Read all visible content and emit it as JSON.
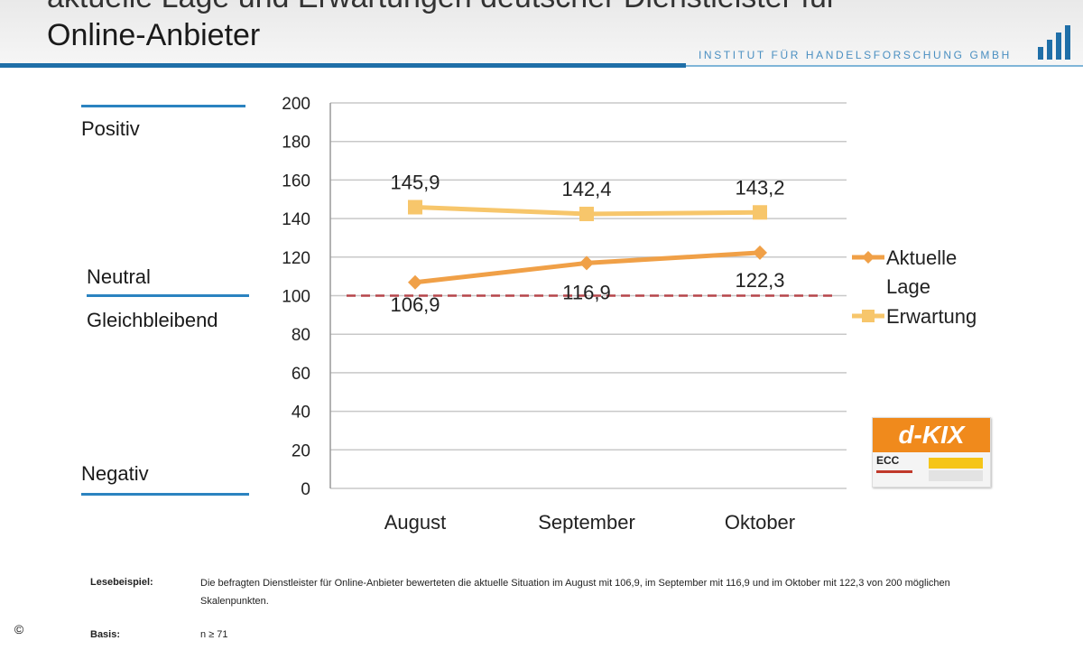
{
  "header": {
    "title_line1": "aktuelle Lage und Erwartungen deutscher Dienstleister für",
    "title_line2": "Online-Anbieter",
    "institute": "INSTITUT FÜR HANDELSFORSCHUNG GMBH"
  },
  "side_labels": {
    "positive": "Positiv",
    "neutral": "Neutral",
    "same": "Gleichbleibend",
    "negative": "Negativ"
  },
  "chart_data": {
    "type": "line",
    "categories": [
      "August",
      "September",
      "Oktober"
    ],
    "series": [
      {
        "name": "Aktuelle Lage",
        "values": [
          106.9,
          116.9,
          122.3
        ],
        "labels": [
          "106,9",
          "116,9",
          "122,3"
        ],
        "color": "#f0a047"
      },
      {
        "name": "Erwartung",
        "values": [
          145.9,
          142.4,
          143.2
        ],
        "labels": [
          "145,9",
          "142,4",
          "143,2"
        ],
        "color": "#f7c66b"
      }
    ],
    "reference_line": {
      "value": 100,
      "color": "#b5454a",
      "style": "dashed"
    },
    "ylim": [
      0,
      200
    ],
    "yticks": [
      0,
      20,
      40,
      60,
      80,
      100,
      120,
      140,
      160,
      180,
      200
    ],
    "grid": true,
    "legend": "right",
    "title": "",
    "xlabel": "",
    "ylabel": ""
  },
  "legend_lines": {
    "aktuelle": [
      "Aktuelle",
      "Lage"
    ],
    "erwartung": [
      "Erwartung"
    ]
  },
  "badge": {
    "title": "d-KIX",
    "sub": "ECC"
  },
  "footer": {
    "lesebeispiel_key": "Lesebeispiel:",
    "lesebeispiel_text": "Die befragten Dienstleister für Online-Anbieter bewerteten die aktuelle Situation im August mit 106,9, im September mit 116,9 und im Oktober mit 122,3 von 200 möglichen Skalenpunkten.",
    "basis_key": "Basis:",
    "basis_text": "n ≥ 71",
    "copyright": "©"
  },
  "colors": {
    "accent_blue": "#1f6fa8",
    "orange_dark": "#f0a047",
    "orange_light": "#f7c66b",
    "reference_red": "#b5454a"
  }
}
